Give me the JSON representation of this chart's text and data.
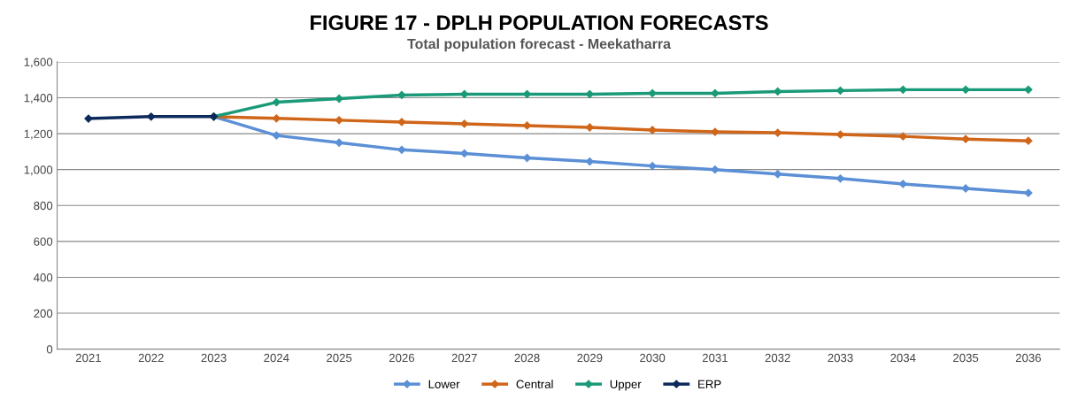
{
  "chart_data": {
    "type": "line",
    "title": "FIGURE 17 - DPLH POPULATION FORECASTS",
    "subtitle": "Total population forecast - Meekatharra",
    "categories": [
      "2021",
      "2022",
      "2023",
      "2024",
      "2025",
      "2026",
      "2027",
      "2028",
      "2029",
      "2030",
      "2031",
      "2032",
      "2033",
      "2034",
      "2035",
      "2036"
    ],
    "series": [
      {
        "name": "Lower",
        "color": "#5b8fd6",
        "values": [
          null,
          null,
          1295,
          1190,
          1150,
          1110,
          1090,
          1065,
          1045,
          1020,
          1000,
          975,
          950,
          920,
          895,
          870
        ]
      },
      {
        "name": "Central",
        "color": "#d0661a",
        "values": [
          null,
          null,
          1295,
          1285,
          1275,
          1265,
          1255,
          1245,
          1235,
          1220,
          1210,
          1205,
          1195,
          1185,
          1170,
          1160
        ]
      },
      {
        "name": "Upper",
        "color": "#1a9a78",
        "values": [
          null,
          null,
          1295,
          1375,
          1395,
          1415,
          1420,
          1420,
          1420,
          1425,
          1425,
          1435,
          1440,
          1445,
          1445,
          1445
        ]
      },
      {
        "name": "ERP",
        "color": "#0d2a5c",
        "values": [
          1284,
          1295,
          1295,
          null,
          null,
          null,
          null,
          null,
          null,
          null,
          null,
          null,
          null,
          null,
          null,
          null
        ]
      }
    ],
    "ylim": [
      0,
      1600
    ],
    "yticks": [
      0,
      {
        "value": 200,
        "label": "200"
      },
      {
        "value": 400,
        "label": "400"
      },
      {
        "value": 600,
        "label": "600"
      },
      {
        "value": 800,
        "label": "800"
      },
      {
        "value": 1000,
        "label": "1,000"
      },
      {
        "value": 1200,
        "label": "1,200"
      },
      {
        "value": 1400,
        "label": "1,400"
      },
      {
        "value": 1600,
        "label": "1,600"
      }
    ],
    "grid": "y",
    "legend": "bottom",
    "marker": "diamond",
    "line_style": "solid"
  }
}
